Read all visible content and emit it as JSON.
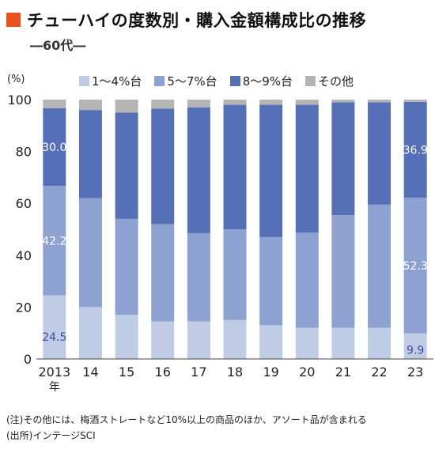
{
  "header": {
    "title": "チューハイの度数別・購入金額構成比の推移",
    "subtitle": "―60代―",
    "accent_color": "#e8501e"
  },
  "notes": {
    "note1": "(注)その他には、梅酒ストレートなど10%以上の商品のほか、アソート品が含まれる",
    "note2": "(出所)インテージSCI"
  },
  "chart_data": {
    "type": "bar",
    "stacked": true,
    "unit_label": "(%)",
    "categories": [
      "2013",
      "14",
      "15",
      "16",
      "17",
      "18",
      "19",
      "20",
      "21",
      "22",
      "23"
    ],
    "category_suffix": "年",
    "ylim": [
      0,
      100
    ],
    "yticks": [
      0,
      20,
      40,
      60,
      80,
      100
    ],
    "grid": false,
    "legend_position": "top",
    "series": [
      {
        "name": "1～4%台",
        "color": "#c0cce6",
        "values": [
          24.5,
          20,
          17,
          14.5,
          14.5,
          15,
          13,
          12,
          12,
          12,
          9.9
        ]
      },
      {
        "name": "5～7%台",
        "color": "#8ea2d2",
        "values": [
          42.2,
          42,
          37,
          37.5,
          34,
          35,
          34,
          36.7,
          43.5,
          47.5,
          52.3
        ]
      },
      {
        "name": "8～9%台",
        "color": "#5670b8",
        "values": [
          30.0,
          34,
          41,
          44.5,
          48.5,
          48,
          51,
          49.3,
          43.5,
          39.5,
          36.9
        ]
      },
      {
        "name": "その他",
        "color": "#b4b4b4",
        "values": [
          3.3,
          4,
          5,
          3.5,
          3,
          2,
          2,
          2,
          1,
          1,
          0.9
        ]
      }
    ],
    "data_labels": [
      {
        "category": "2013",
        "series": "1～4%台",
        "text": "24.5",
        "color": "#3a4f9a"
      },
      {
        "category": "2013",
        "series": "5～7%台",
        "text": "42.2",
        "color": "#ffffff"
      },
      {
        "category": "2013",
        "series": "8～9%台",
        "text": "30.0",
        "color": "#ffffff"
      },
      {
        "category": "23",
        "series": "1～4%台",
        "text": "9.9",
        "color": "#3a4f9a"
      },
      {
        "category": "23",
        "series": "5～7%台",
        "text": "52.3",
        "color": "#ffffff"
      },
      {
        "category": "23",
        "series": "8～9%台",
        "text": "36.9",
        "color": "#ffffff"
      }
    ]
  }
}
